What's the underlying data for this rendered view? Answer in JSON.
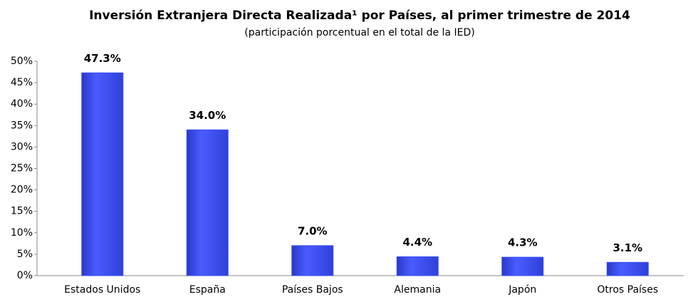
{
  "chart_data": {
    "type": "bar",
    "title": "Inversión Extranjera Directa Realizada¹ por Países, al primer trimestre de 2014",
    "subtitle": "(participación porcentual en el total de la IED)",
    "categories": [
      "Estados Unidos",
      "España",
      "Países Bajos",
      "Alemania",
      "Japón",
      "Otros Países"
    ],
    "values": [
      47.3,
      34.0,
      7.0,
      4.4,
      4.3,
      3.1
    ],
    "value_labels": [
      "47.3%",
      "34.0%",
      "7.0%",
      "4.4%",
      "4.3%",
      "3.1%"
    ],
    "color": "#3b4ef2",
    "ylim": [
      0,
      50
    ],
    "yticks": [
      {
        "value": 0,
        "label": "0%"
      },
      {
        "value": 5,
        "label": "5%"
      },
      {
        "value": 10,
        "label": "10%"
      },
      {
        "value": 15,
        "label": "15%"
      },
      {
        "value": 20,
        "label": "20%"
      },
      {
        "value": 25,
        "label": "25%"
      },
      {
        "value": 30,
        "label": "30%"
      },
      {
        "value": 35,
        "label": "35%"
      },
      {
        "value": 40,
        "label": "40%"
      },
      {
        "value": 45,
        "label": "45%"
      },
      {
        "value": 50,
        "label": "50%"
      }
    ],
    "grid": false
  }
}
